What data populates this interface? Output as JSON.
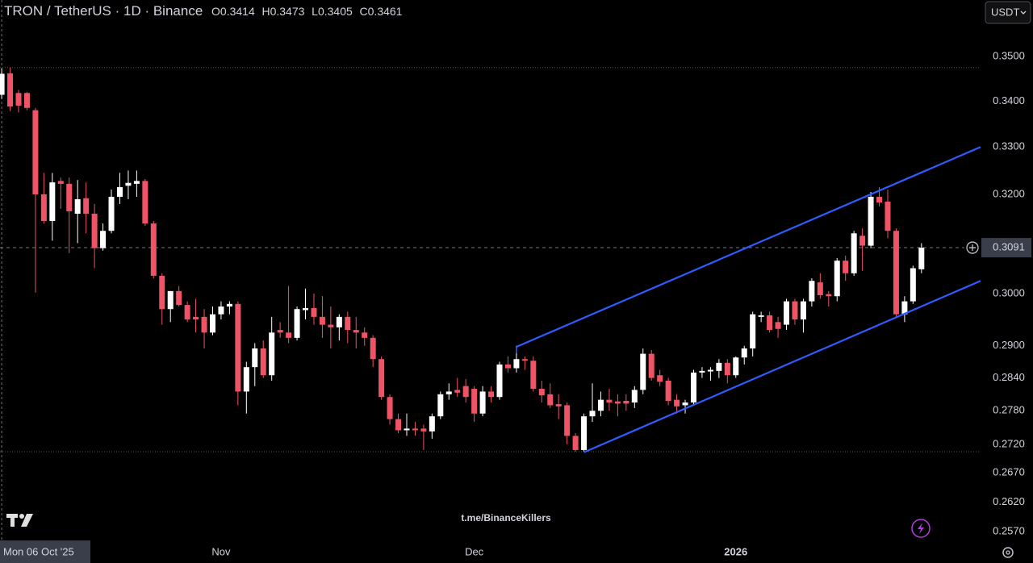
{
  "chart_data": {
    "type": "candlestick",
    "title": "TRON / TetherUS · 1D · Binance",
    "ohlc_labels": [
      "O",
      "H",
      "L",
      "C"
    ],
    "currency": "USDT",
    "watermark": "t.me/BinanceKillers",
    "log_scale": true,
    "grid": false,
    "up_color": "#ffffff",
    "down_color": "#ef5366",
    "open": [
      0.3414,
      0.3462,
      0.3418,
      0.3418,
      0.338,
      0.32,
      0.3145,
      0.3228,
      0.3222,
      0.316,
      0.3192,
      0.316,
      0.309,
      0.3125,
      0.3195,
      0.3218,
      0.3222,
      0.3228,
      0.314,
      0.3035,
      0.297,
      0.3005,
      0.2978,
      0.2955,
      0.2955,
      0.2925,
      0.296,
      0.2975,
      0.298,
      0.2815,
      0.286,
      0.2895,
      0.2845,
      0.293,
      0.2925,
      0.2915,
      0.2968,
      0.2972,
      0.2955,
      0.294,
      0.2935,
      0.2955,
      0.293,
      0.2925,
      0.2915,
      0.2875,
      0.2805,
      0.2765,
      0.2745,
      0.2748,
      0.2748,
      0.2743,
      0.277,
      0.281,
      0.2818,
      0.2825,
      0.282,
      0.2775,
      0.2815,
      0.2805,
      0.2865,
      0.2858,
      0.2875,
      0.2872,
      0.282,
      0.281,
      0.2792,
      0.279,
      0.2735,
      0.271,
      0.277,
      0.278,
      0.28,
      0.2797,
      0.2798,
      0.2795,
      0.2818,
      0.2885,
      0.2845,
      0.2835,
      0.28,
      0.279,
      0.2795,
      0.285,
      0.2852,
      0.2853,
      0.2868,
      0.2845,
      0.2878,
      0.2895,
      0.2955,
      0.2958,
      0.2945,
      0.294,
      0.2985,
      0.295,
      0.2985,
      0.3022,
      0.2999,
      0.2995,
      0.3065,
      0.304,
      0.3115,
      0.3095,
      0.3195,
      0.3185,
      0.3125,
      0.296,
      0.2985,
      0.3048
    ],
    "high": [
      0.3473,
      0.3475,
      0.3425,
      0.342,
      0.3385,
      0.3245,
      0.3245,
      0.3235,
      0.3235,
      0.323,
      0.3225,
      0.318,
      0.314,
      0.321,
      0.3245,
      0.325,
      0.325,
      0.3232,
      0.3145,
      0.304,
      0.3005,
      0.3015,
      0.2985,
      0.299,
      0.297,
      0.2975,
      0.2985,
      0.2985,
      0.2985,
      0.287,
      0.2905,
      0.291,
      0.2955,
      0.2945,
      0.3015,
      0.2975,
      0.301,
      0.3,
      0.2995,
      0.2975,
      0.296,
      0.2965,
      0.2955,
      0.2935,
      0.292,
      0.288,
      0.281,
      0.2775,
      0.2775,
      0.276,
      0.2755,
      0.2775,
      0.2815,
      0.283,
      0.284,
      0.2838,
      0.2825,
      0.2825,
      0.2825,
      0.287,
      0.288,
      0.29,
      0.288,
      0.288,
      0.2835,
      0.283,
      0.281,
      0.2795,
      0.274,
      0.2775,
      0.283,
      0.2815,
      0.282,
      0.281,
      0.281,
      0.2825,
      0.2895,
      0.2892,
      0.2855,
      0.284,
      0.281,
      0.28,
      0.2855,
      0.286,
      0.286,
      0.2875,
      0.2875,
      0.288,
      0.29,
      0.2965,
      0.2965,
      0.2965,
      0.2955,
      0.299,
      0.299,
      0.299,
      0.303,
      0.304,
      0.3005,
      0.307,
      0.3075,
      0.3125,
      0.313,
      0.3205,
      0.3215,
      0.321,
      0.313,
      0.2995,
      0.3055,
      0.31
    ],
    "low": [
      0.3405,
      0.3378,
      0.3375,
      0.338,
      0.3002,
      0.314,
      0.3105,
      0.317,
      0.308,
      0.31,
      0.312,
      0.305,
      0.3085,
      0.312,
      0.318,
      0.319,
      0.3195,
      0.3135,
      0.303,
      0.294,
      0.2945,
      0.2975,
      0.2945,
      0.2925,
      0.2895,
      0.292,
      0.295,
      0.296,
      0.279,
      0.2775,
      0.2825,
      0.284,
      0.2835,
      0.2915,
      0.2905,
      0.291,
      0.295,
      0.294,
      0.2915,
      0.2895,
      0.291,
      0.2905,
      0.2895,
      0.29,
      0.286,
      0.28,
      0.2755,
      0.274,
      0.2735,
      0.2735,
      0.271,
      0.273,
      0.2765,
      0.28,
      0.2805,
      0.2795,
      0.276,
      0.277,
      0.2795,
      0.28,
      0.285,
      0.285,
      0.2855,
      0.2815,
      0.2795,
      0.2785,
      0.2765,
      0.272,
      0.2707,
      0.2707,
      0.276,
      0.277,
      0.278,
      0.277,
      0.278,
      0.2785,
      0.281,
      0.2835,
      0.2825,
      0.279,
      0.2775,
      0.2775,
      0.279,
      0.284,
      0.2835,
      0.284,
      0.283,
      0.284,
      0.2865,
      0.288,
      0.2945,
      0.2925,
      0.2915,
      0.293,
      0.294,
      0.2925,
      0.2975,
      0.299,
      0.2975,
      0.2985,
      0.3025,
      0.3035,
      0.3045,
      0.309,
      0.3175,
      0.311,
      0.2955,
      0.2945,
      0.298,
      0.304
    ],
    "close": [
      0.3461,
      0.3388,
      0.339,
      0.3385,
      0.32,
      0.3145,
      0.3225,
      0.3222,
      0.3165,
      0.319,
      0.316,
      0.309,
      0.3125,
      0.3195,
      0.3215,
      0.3224,
      0.3228,
      0.314,
      0.3035,
      0.297,
      0.3005,
      0.2978,
      0.295,
      0.295,
      0.2925,
      0.296,
      0.2975,
      0.298,
      0.2815,
      0.286,
      0.2895,
      0.2845,
      0.2925,
      0.2925,
      0.2915,
      0.297,
      0.2972,
      0.2955,
      0.294,
      0.2935,
      0.2955,
      0.293,
      0.2925,
      0.2915,
      0.2875,
      0.2805,
      0.2765,
      0.2745,
      0.2748,
      0.2745,
      0.2743,
      0.277,
      0.281,
      0.2815,
      0.2813,
      0.2805,
      0.2775,
      0.2815,
      0.2805,
      0.2865,
      0.2858,
      0.2875,
      0.2872,
      0.282,
      0.2808,
      0.279,
      0.2788,
      0.2735,
      0.271,
      0.277,
      0.278,
      0.28,
      0.2795,
      0.2793,
      0.2793,
      0.2818,
      0.2885,
      0.284,
      0.2833,
      0.2798,
      0.2788,
      0.2795,
      0.285,
      0.2853,
      0.2855,
      0.2868,
      0.2845,
      0.2878,
      0.2895,
      0.296,
      0.2958,
      0.293,
      0.2932,
      0.2985,
      0.295,
      0.2985,
      0.3025,
      0.2997,
      0.2995,
      0.3065,
      0.304,
      0.312,
      0.3095,
      0.3195,
      0.3183,
      0.3125,
      0.296,
      0.2985,
      0.305,
      0.3091
    ],
    "xlim": [
      -0.2,
      116
    ],
    "xticks": [
      {
        "value": 26,
        "label": "Nov"
      },
      {
        "value": 56,
        "label": "Dec"
      },
      {
        "value": 87,
        "label": "2026"
      }
    ],
    "crosshair": {
      "x": 0,
      "label": "Mon 06 Oct '25"
    },
    "ylim": [
      0.2558,
      0.3631
    ],
    "yticks": [
      {
        "value": 0.35,
        "label": "0.3500"
      },
      {
        "value": 0.34,
        "label": "0.3400"
      },
      {
        "value": 0.33,
        "label": "0.3300"
      },
      {
        "value": 0.32,
        "label": "0.3200"
      },
      {
        "value": 0.3,
        "label": "0.3000"
      },
      {
        "value": 0.29,
        "label": "0.2900"
      },
      {
        "value": 0.284,
        "label": "0.2840"
      },
      {
        "value": 0.278,
        "label": "0.2780"
      },
      {
        "value": 0.272,
        "label": "0.2720"
      },
      {
        "value": 0.267,
        "label": "0.2670"
      },
      {
        "value": 0.262,
        "label": "0.2620"
      },
      {
        "value": 0.257,
        "label": "0.2570"
      }
    ],
    "last_price": 0.3091,
    "hlines": [
      0.3475,
      0.2707
    ],
    "channel_color": "#2f5cff",
    "channels": [
      {
        "x": [
          61,
          116
        ],
        "y": [
          0.2898,
          0.33
        ]
      },
      {
        "x": [
          69,
          116
        ],
        "y": [
          0.2706,
          0.3025
        ]
      }
    ]
  }
}
